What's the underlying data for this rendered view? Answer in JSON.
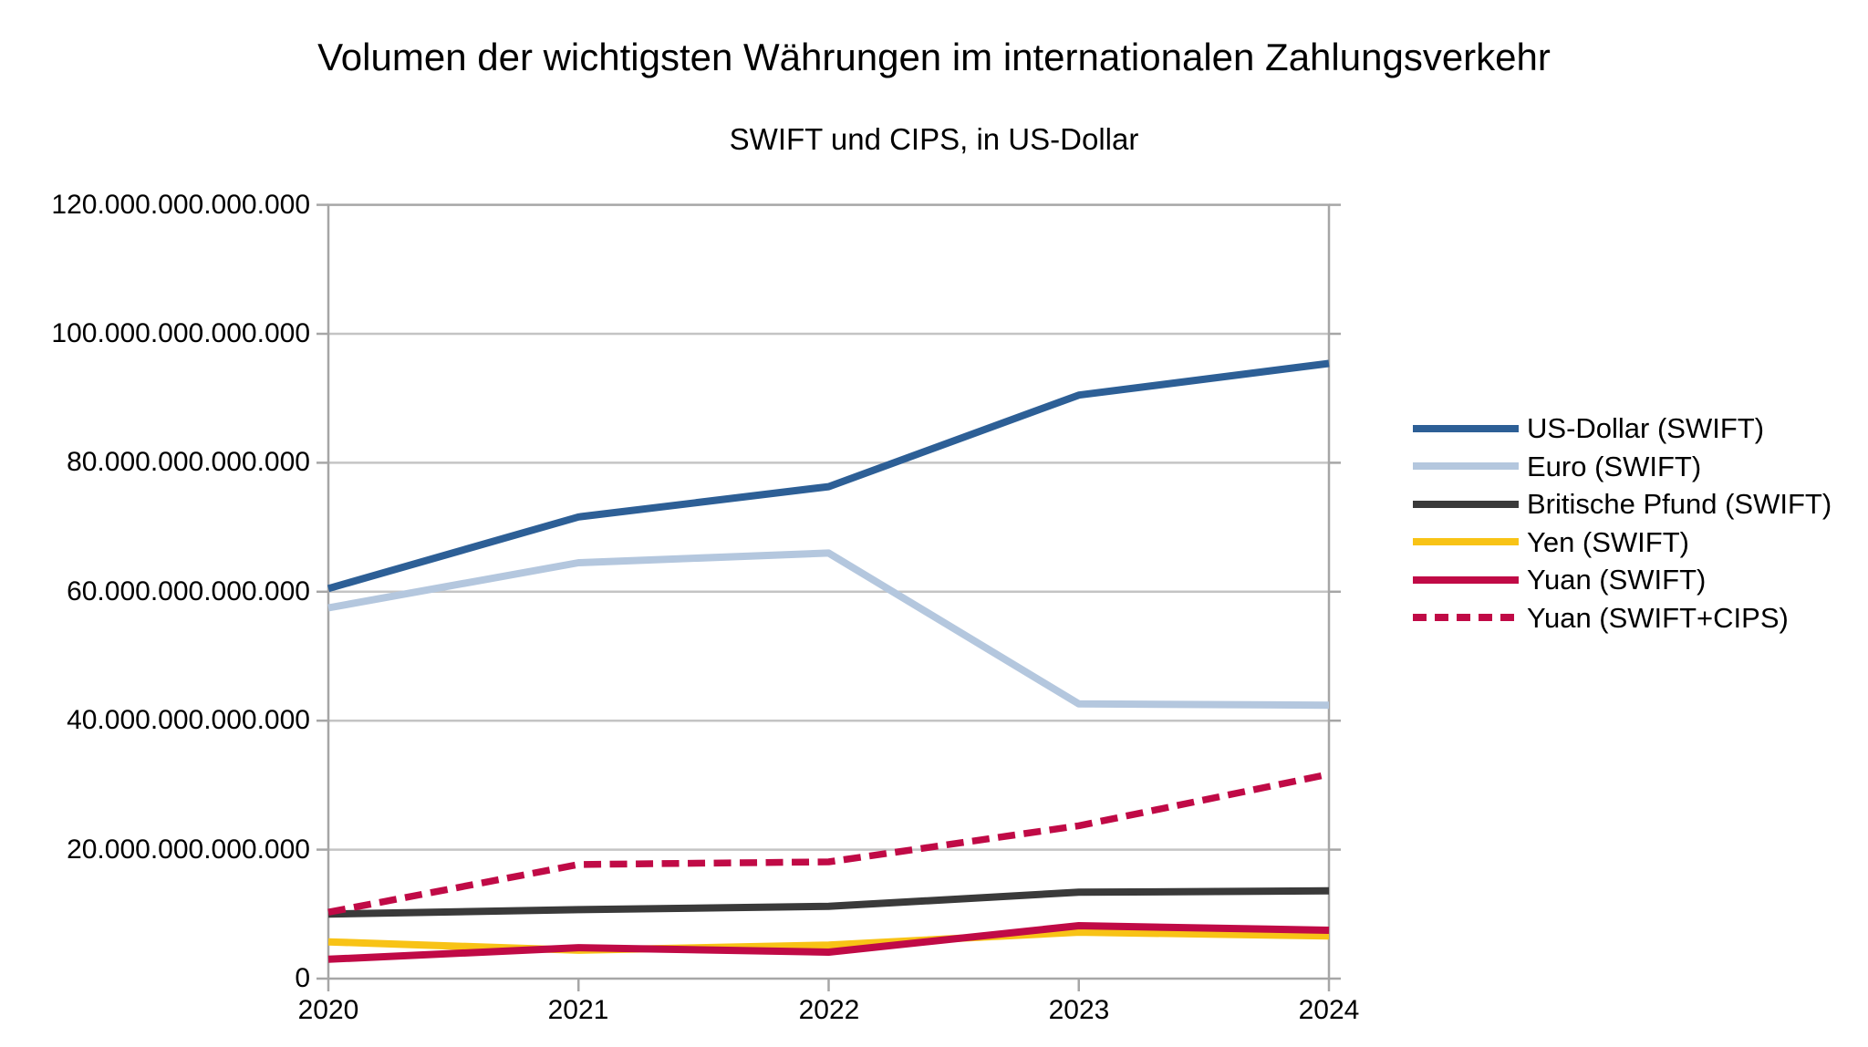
{
  "title": "Volumen der wichtigsten Währungen im internationalen Zahlungsverkehr",
  "subtitle": "SWIFT und CIPS, in US-Dollar",
  "colors": {
    "background": "#FFFFFF",
    "text": "#000000",
    "axis": "#A6A6A6",
    "grid": "#C4C4C4",
    "us_dollar": "#2D5F96",
    "euro": "#B4C7DE",
    "pfund": "#3A3A3A",
    "yen": "#F8C316",
    "yuan": "#C00A46"
  },
  "chart_data": {
    "type": "line",
    "x": [
      2020,
      2021,
      2022,
      2023,
      2024
    ],
    "x_tick_labels": [
      "2020",
      "2021",
      "2022",
      "2023",
      "2024"
    ],
    "y_tick_labels": [
      "0",
      "20.000.000.000.000",
      "40.000.000.000.000",
      "60.000.000.000.000",
      "80.000.000.000.000",
      "100.000.000.000.000",
      "120.000.000.000.000"
    ],
    "y_tick_values": [
      0,
      20000000000000,
      40000000000000,
      60000000000000,
      80000000000000,
      100000000000000,
      120000000000000
    ],
    "ylim": [
      0,
      120000000000000
    ],
    "xlabel": "",
    "ylabel": "",
    "grid": "horizontal",
    "legend_position": "right",
    "series": [
      {
        "name": "US-Dollar (SWIFT)",
        "color": "#2D5F96",
        "style": "solid",
        "values": [
          60500000000000,
          71600000000000,
          76300000000000,
          90500000000000,
          95400000000000
        ]
      },
      {
        "name": "Euro (SWIFT)",
        "color": "#B4C7DE",
        "style": "solid",
        "values": [
          57500000000000,
          64500000000000,
          66000000000000,
          42600000000000,
          42400000000000
        ]
      },
      {
        "name": "Britische Pfund (SWIFT)",
        "color": "#3A3A3A",
        "style": "solid",
        "values": [
          10000000000000,
          10700000000000,
          11200000000000,
          13400000000000,
          13600000000000
        ]
      },
      {
        "name": "Yen (SWIFT)",
        "color": "#F8C316",
        "style": "solid",
        "values": [
          5700000000000,
          4400000000000,
          5200000000000,
          7200000000000,
          6600000000000
        ]
      },
      {
        "name": "Yuan (SWIFT)",
        "color": "#C00A46",
        "style": "solid",
        "values": [
          3000000000000,
          4800000000000,
          4100000000000,
          8200000000000,
          7500000000000
        ]
      },
      {
        "name": "Yuan (SWIFT+CIPS)",
        "color": "#C00A46",
        "style": "dashed",
        "values": [
          10300000000000,
          17700000000000,
          18100000000000,
          23700000000000,
          31700000000000
        ]
      }
    ]
  }
}
